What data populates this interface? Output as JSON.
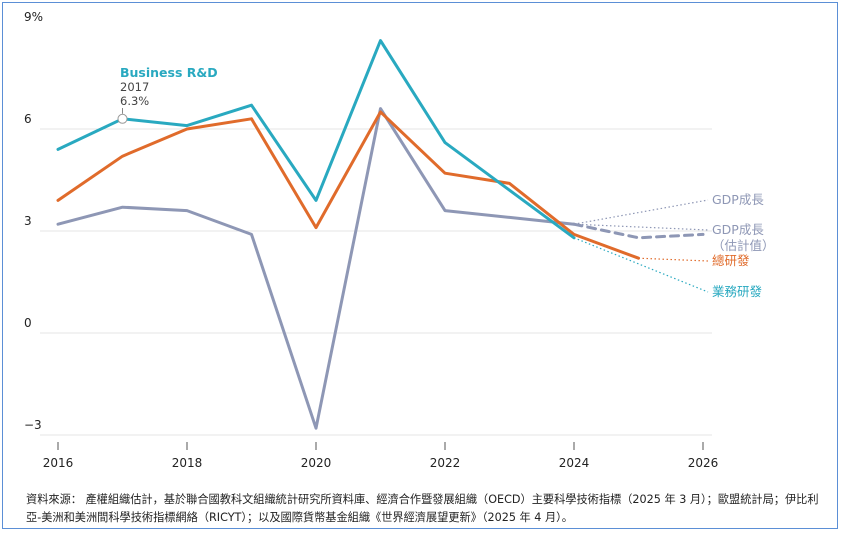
{
  "chart_data": {
    "type": "line",
    "x": [
      2016,
      2017,
      2018,
      2019,
      2020,
      2021,
      2022,
      2023,
      2024,
      2025,
      2026
    ],
    "xticks": [
      2016,
      2018,
      2020,
      2022,
      2024,
      2026
    ],
    "xtick_labels": [
      "2016",
      "2018",
      "2020",
      "2022",
      "2024",
      "2026"
    ],
    "ylim": [
      -3,
      9
    ],
    "yticks": [
      9,
      6,
      3,
      0,
      -3
    ],
    "ytick_labels": [
      "9%",
      "6",
      "3",
      "0",
      "−3"
    ],
    "grid": "horizontal",
    "series": [
      {
        "name": "業務研發",
        "color": "#29a9c0",
        "label_color": "#29a9c0",
        "values": [
          5.4,
          6.3,
          6.1,
          6.7,
          3.9,
          8.6,
          5.6,
          4.2,
          2.8,
          null,
          null
        ]
      },
      {
        "name": "總研發",
        "color": "#e06b2b",
        "label_color": "#e06b2b",
        "values": [
          3.9,
          5.2,
          6.0,
          6.3,
          3.1,
          6.5,
          4.7,
          4.4,
          2.9,
          2.2,
          null
        ]
      },
      {
        "name": "GDP成長",
        "color": "#8e97b5",
        "label_color": "#8e97b5",
        "values": [
          3.2,
          3.7,
          3.6,
          2.9,
          -2.8,
          6.6,
          3.6,
          3.4,
          3.2,
          null,
          null
        ]
      },
      {
        "name": "GDP成長\n（估計值）",
        "color": "#8e97b5",
        "label_color": "#8e97b5",
        "dashed": true,
        "values": [
          null,
          null,
          null,
          null,
          null,
          null,
          null,
          null,
          3.2,
          2.8,
          2.9
        ]
      }
    ],
    "annotation": {
      "series": "Business R&D",
      "title": "Business R&D",
      "year": "2017",
      "value": "6.3%",
      "x": 2017,
      "y": 6.3,
      "title_color": "#29a9c0"
    }
  },
  "source_text": "資料來源： 產權組織估計，基於聯合國教科文組織統計研究所資料庫、經濟合作暨發展組織（OECD）主要科學技術指標（2025 年 3 月）；歐盟統計局；伊比利亞-美洲和美洲間科學技術指標網絡（RICYT）；以及國際貨幣基金組織《世界經濟展望更新》（2025 年 4 月）。"
}
